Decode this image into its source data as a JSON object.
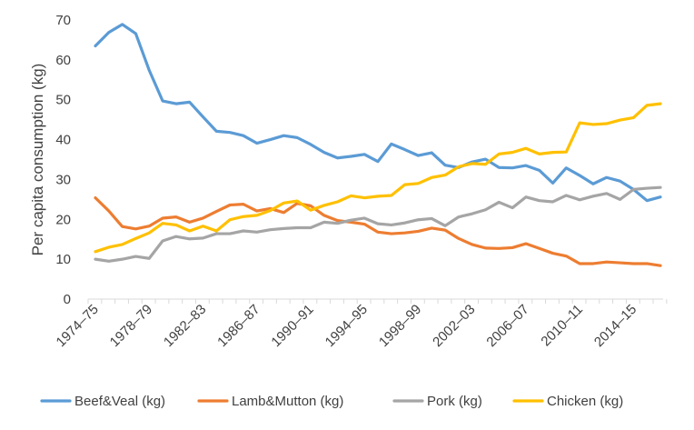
{
  "chart_data": {
    "type": "line",
    "title": "",
    "xlabel": "",
    "ylabel": "Per capita consumption (kg)",
    "ylim": [
      0,
      70
    ],
    "yticks": [
      0,
      10,
      20,
      30,
      40,
      50,
      60,
      70
    ],
    "grid": false,
    "legend_position": "bottom",
    "x": [
      "1974–75",
      "1975–76",
      "1976–77",
      "1977–78",
      "1978–79",
      "1979–80",
      "1980–81",
      "1981–82",
      "1982–83",
      "1983–84",
      "1984–85",
      "1985–86",
      "1986–87",
      "1987–88",
      "1988–89",
      "1989–90",
      "1990–91",
      "1991–92",
      "1992–93",
      "1993–94",
      "1994–95",
      "1995–96",
      "1996–97",
      "1997–98",
      "1998–99",
      "1999–00",
      "2000–01",
      "2001–02",
      "2002–03",
      "2003–04",
      "2004–05",
      "2005–06",
      "2006–07",
      "2007–08",
      "2008–09",
      "2009–10",
      "2010–11",
      "2011–12",
      "2012–13",
      "2013–14",
      "2014–15",
      "2015–16",
      "2016–17"
    ],
    "xtick_labels": [
      "1974–75",
      "1978–79",
      "1982–83",
      "1986–87",
      "1990–91",
      "1994–95",
      "1998–99",
      "2002–03",
      "2006–07",
      "2010–11",
      "2014–15"
    ],
    "series": [
      {
        "name": "Beef&Veal (kg)",
        "color": "#5B9BD5",
        "values": [
          63.5,
          66.9,
          68.9,
          66.6,
          57.4,
          49.7,
          49.0,
          49.4,
          45.7,
          42.1,
          41.8,
          41.0,
          39.1,
          40.0,
          41.0,
          40.5,
          38.8,
          36.8,
          35.4,
          35.8,
          36.3,
          34.5,
          38.9,
          37.5,
          36.0,
          36.7,
          33.6,
          33.0,
          34.4,
          35.1,
          33.0,
          32.9,
          33.5,
          32.3,
          29.1,
          32.9,
          31.0,
          28.9,
          30.5,
          29.6,
          27.5,
          24.7,
          25.6
        ]
      },
      {
        "name": "Lamb&Mutton (kg)",
        "color": "#ED7D31",
        "values": [
          25.4,
          22.1,
          18.2,
          17.6,
          18.3,
          20.3,
          20.6,
          19.3,
          20.3,
          22.0,
          23.6,
          23.8,
          22.1,
          22.7,
          21.7,
          24.0,
          23.4,
          21.0,
          19.7,
          19.3,
          18.8,
          16.8,
          16.4,
          16.6,
          17.0,
          17.8,
          17.3,
          15.2,
          13.7,
          12.8,
          12.7,
          12.9,
          13.9,
          12.7,
          11.5,
          10.8,
          8.9,
          8.9,
          9.3,
          9.1,
          8.9,
          8.9,
          8.4
        ]
      },
      {
        "name": "Pork (kg)",
        "color": "#A5A5A5",
        "values": [
          10.0,
          9.5,
          10.0,
          10.7,
          10.2,
          14.6,
          15.7,
          15.1,
          15.3,
          16.4,
          16.4,
          17.1,
          16.8,
          17.4,
          17.7,
          17.9,
          17.9,
          19.3,
          19.0,
          19.8,
          20.3,
          18.9,
          18.6,
          19.1,
          19.9,
          20.2,
          18.4,
          20.6,
          21.4,
          22.4,
          24.3,
          22.9,
          25.6,
          24.7,
          24.4,
          26.0,
          24.9,
          25.8,
          26.5,
          25.0,
          27.5,
          27.8,
          28.0
        ]
      },
      {
        "name": "Chicken (kg)",
        "color": "#FFC000",
        "values": [
          11.9,
          13.0,
          13.7,
          15.2,
          16.6,
          19.0,
          18.6,
          17.1,
          18.3,
          17.1,
          19.9,
          20.7,
          21.0,
          22.2,
          24.1,
          24.6,
          22.3,
          23.5,
          24.4,
          25.9,
          25.4,
          25.8,
          26.0,
          28.7,
          29.0,
          30.5,
          31.1,
          33.2,
          34.0,
          33.8,
          36.4,
          36.8,
          37.8,
          36.4,
          36.8,
          36.9,
          44.2,
          43.8,
          44.0,
          44.9,
          45.5,
          48.6,
          49.0
        ]
      }
    ]
  }
}
